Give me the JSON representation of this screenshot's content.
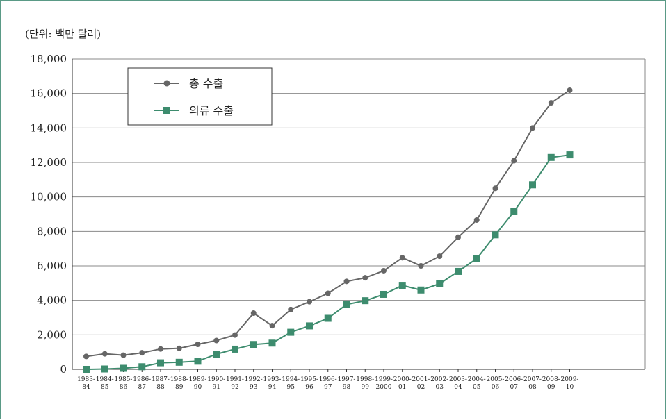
{
  "unit_label": "(단위: 백만 달러)",
  "colors": {
    "total": "#666666",
    "apparel": "#3d8c6e",
    "frame": "#5a9a86"
  },
  "chart_data": {
    "type": "line",
    "ylim": [
      0,
      18000
    ],
    "yticks": [
      "0",
      "2,000",
      "4,000",
      "6,000",
      "8,000",
      "10,000",
      "12,000",
      "14,000",
      "16,000",
      "18,000"
    ],
    "ytick_values": [
      0,
      2000,
      4000,
      6000,
      8000,
      10000,
      12000,
      14000,
      16000,
      18000
    ],
    "grid": true,
    "legend_position": "top-left",
    "categories": [
      [
        "1983-",
        "84"
      ],
      [
        "1984-",
        "85"
      ],
      [
        "1985-",
        "86"
      ],
      [
        "1986-",
        "87"
      ],
      [
        "1987-",
        "88"
      ],
      [
        "1988-",
        "89"
      ],
      [
        "1989-",
        "90"
      ],
      [
        "1990-",
        "91"
      ],
      [
        "1991-",
        "92"
      ],
      [
        "1992-",
        "93"
      ],
      [
        "1993-",
        "94"
      ],
      [
        "1994-",
        "95"
      ],
      [
        "1995-",
        "96"
      ],
      [
        "1996-",
        "97"
      ],
      [
        "1997-",
        "98"
      ],
      [
        "1998-",
        "99"
      ],
      [
        "1999-",
        "2000"
      ],
      [
        "2000-",
        "01"
      ],
      [
        "2001-",
        "02"
      ],
      [
        "2002-",
        "03"
      ],
      [
        "2003-",
        "04"
      ],
      [
        "2004-",
        "05"
      ],
      [
        "2005-",
        "06"
      ],
      [
        "2006-",
        "07"
      ],
      [
        "2007-",
        "08"
      ],
      [
        "2008-",
        "09"
      ],
      [
        "2009-",
        "10"
      ]
    ],
    "series": [
      {
        "name": "총 수출",
        "marker": "circle",
        "values": [
          750,
          900,
          820,
          960,
          1180,
          1220,
          1450,
          1670,
          1990,
          3260,
          2530,
          3470,
          3920,
          4410,
          5100,
          5310,
          5720,
          6470,
          6000,
          6560,
          7660,
          8660,
          10500,
          12100,
          14000,
          15460,
          16190
        ]
      },
      {
        "name": "의류 수출",
        "marker": "square",
        "values": [
          0,
          20,
          60,
          150,
          380,
          410,
          470,
          880,
          1170,
          1440,
          1520,
          2150,
          2520,
          2960,
          3760,
          3980,
          4350,
          4870,
          4600,
          4960,
          5680,
          6420,
          7800,
          9150,
          10700,
          12290,
          12440
        ]
      }
    ]
  }
}
